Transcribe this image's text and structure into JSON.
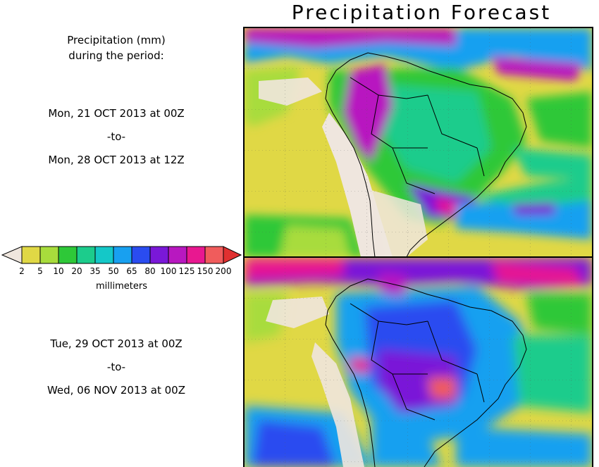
{
  "title": "Precipitation Forecast",
  "header": {
    "line1": "Precipitation (mm)",
    "line2": "during the period:"
  },
  "periods": [
    {
      "from": "Mon, 21 OCT 2013 at 00Z",
      "sep": "-to-",
      "to": "Mon, 28 OCT 2013 at 12Z"
    },
    {
      "from": "Tue, 29 OCT 2013 at 00Z",
      "sep": "-to-",
      "to": "Wed, 06 NOV 2013 at 00Z"
    }
  ],
  "legend": {
    "units": "millimeters",
    "ticks": [
      "2",
      "5",
      "10",
      "20",
      "35",
      "50",
      "65",
      "80",
      "100",
      "125",
      "150",
      "200"
    ],
    "colors": [
      "#efe6de",
      "#e0d845",
      "#a8dc3c",
      "#2ec838",
      "#1ccc8c",
      "#14c8c8",
      "#18a0f0",
      "#2a4cf0",
      "#7a18d8",
      "#b818c0",
      "#e81890",
      "#f05c5c",
      "#e03030"
    ]
  }
}
